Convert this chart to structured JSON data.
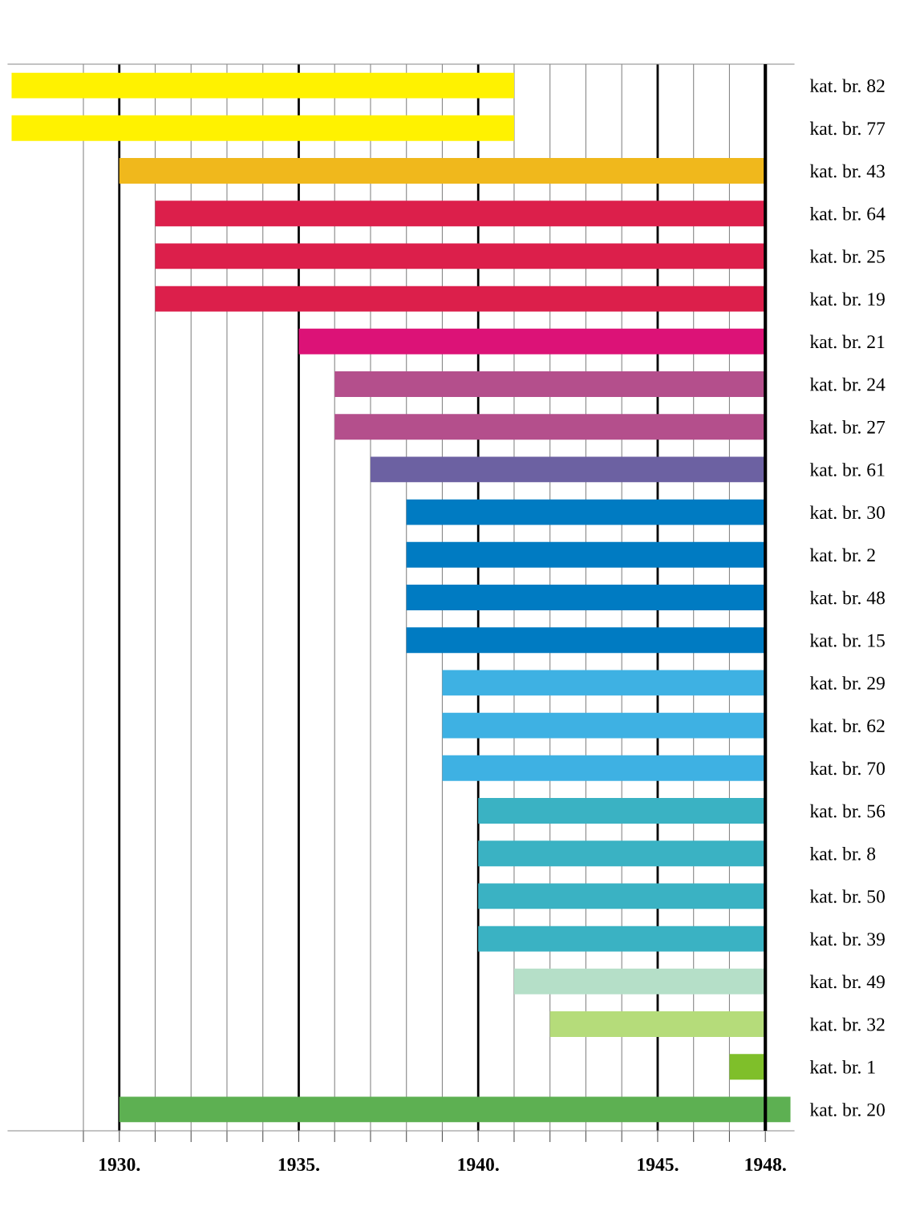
{
  "chart_data": {
    "type": "bar",
    "orientation": "horizontal",
    "categories": [
      "kat. br. 82",
      "kat. br. 77",
      "kat. br. 43",
      "kat. br. 64",
      "kat. br. 25",
      "kat. br. 19",
      "kat. br. 21",
      "kat. br. 24",
      "kat. br. 27",
      "kat. br. 61",
      "kat. br. 30",
      "kat. br. 2",
      "kat. br. 48",
      "kat. br. 15",
      "kat. br. 29",
      "kat. br. 62",
      "kat. br. 70",
      "kat. br. 56",
      "kat. br. 8",
      "kat. br. 50",
      "kat. br. 39",
      "kat. br. 49",
      "kat. br. 32",
      "kat. br. 1",
      "kat. br. 20"
    ],
    "base": [
      1927,
      1927,
      1930,
      1931,
      1931,
      1931,
      1935,
      1936,
      1936,
      1937,
      1938,
      1938,
      1938,
      1938,
      1939,
      1939,
      1939,
      1940,
      1940,
      1940,
      1940,
      1941,
      1942,
      1947,
      1930
    ],
    "values": [
      14,
      14,
      18,
      17,
      17,
      17,
      13,
      12,
      12,
      11,
      10,
      10,
      10,
      10,
      9,
      9,
      9,
      8,
      8,
      8,
      8,
      7,
      6,
      1,
      18.7
    ],
    "colors": [
      "#fff200",
      "#fff200",
      "#f0b81c",
      "#dc1f4b",
      "#dc1f4b",
      "#dc1f4b",
      "#dc1277",
      "#b44f8c",
      "#b44f8c",
      "#6c61a2",
      "#007bc2",
      "#007bc2",
      "#007bc2",
      "#007bc2",
      "#3eb1e3",
      "#3eb1e3",
      "#3eb1e3",
      "#3ab2c3",
      "#3ab2c3",
      "#3ab2c3",
      "#3ab2c3",
      "#b5dfc8",
      "#b5dc7a",
      "#7fbf2a",
      "#5db052"
    ],
    "xlim": [
      1926.9,
      1948.8
    ],
    "xticks": [
      {
        "value": 1929,
        "label": null
      },
      {
        "value": 1930,
        "label": "1930."
      },
      {
        "value": 1931,
        "label": null
      },
      {
        "value": 1932,
        "label": null
      },
      {
        "value": 1933,
        "label": null
      },
      {
        "value": 1934,
        "label": null
      },
      {
        "value": 1935,
        "label": "1935."
      },
      {
        "value": 1936,
        "label": null
      },
      {
        "value": 1937,
        "label": null
      },
      {
        "value": 1938,
        "label": null
      },
      {
        "value": 1939,
        "label": null
      },
      {
        "value": 1940,
        "label": "1940."
      },
      {
        "value": 1941,
        "label": null
      },
      {
        "value": 1942,
        "label": null
      },
      {
        "value": 1943,
        "label": null
      },
      {
        "value": 1944,
        "label": null
      },
      {
        "value": 1945,
        "label": "1945."
      },
      {
        "value": 1946,
        "label": null
      },
      {
        "value": 1947,
        "label": null
      },
      {
        "value": 1948,
        "label": "1948."
      }
    ],
    "grid": "x",
    "legend": false
  }
}
